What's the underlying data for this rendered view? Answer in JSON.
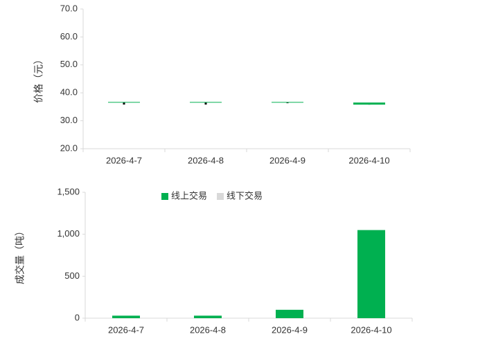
{
  "chart_data": [
    {
      "type": "candlestick",
      "y_label": "价格（元）",
      "categories": [
        "2026-4-7",
        "2026-4-8",
        "2026-4-9",
        "2026-4-10"
      ],
      "open": [
        36.6,
        36.6,
        36.6,
        36.4
      ],
      "high": [
        36.6,
        36.6,
        36.6,
        36.4
      ],
      "low": [
        35.8,
        35.8,
        36.3,
        35.8
      ],
      "close": [
        36.6,
        36.6,
        36.6,
        35.9
      ],
      "color": "#00b050",
      "wick_color": "#000000",
      "ylim": [
        20,
        70
      ],
      "yticks": [
        {
          "value": 20,
          "label": "20.0"
        },
        {
          "value": 30,
          "label": "30.0"
        },
        {
          "value": 40,
          "label": "40.0"
        },
        {
          "value": 50,
          "label": "50.0"
        },
        {
          "value": 60,
          "label": "60.0"
        },
        {
          "value": 70,
          "label": "70.0"
        }
      ]
    },
    {
      "type": "bar",
      "y_label": "成交量（吨）",
      "categories": [
        "2026-4-7",
        "2026-4-8",
        "2026-4-9",
        "2026-4-10"
      ],
      "series": [
        {
          "name": "线上交易",
          "color": "#00b050",
          "values": [
            30,
            30,
            100,
            1050
          ]
        },
        {
          "name": "线下交易",
          "color": "#d9d9d9",
          "values": [
            0,
            0,
            0,
            0
          ]
        }
      ],
      "ylim": [
        0,
        1500
      ],
      "yticks": [
        0,
        500,
        {
          "value": 1000,
          "label": "1,000"
        },
        {
          "value": 1500,
          "label": "1,500"
        }
      ],
      "legend": "top"
    }
  ]
}
